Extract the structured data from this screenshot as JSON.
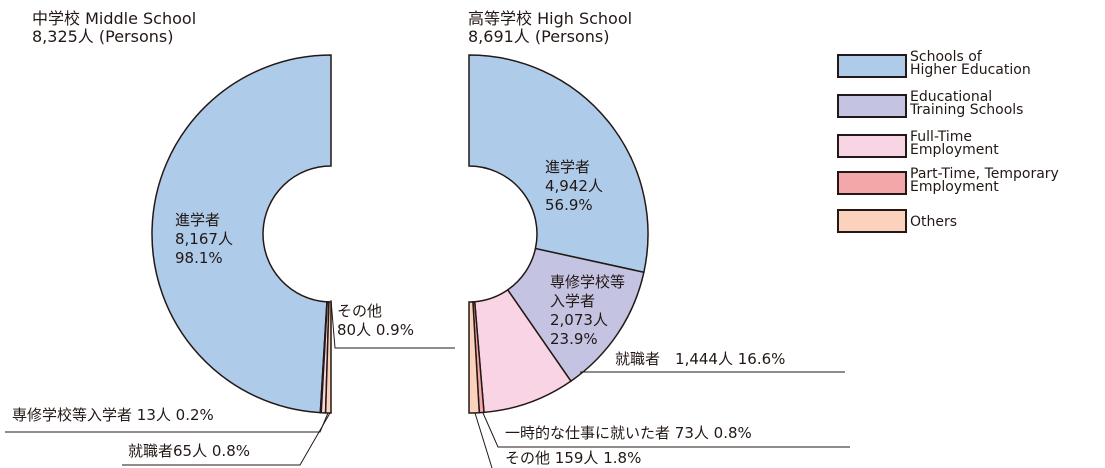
{
  "chart_data": [
    {
      "type": "pie",
      "title": "中学校 Middle School",
      "subtitle": "8,325人 (Persons)",
      "categories": [
        "進学者",
        "専修学校等入学者",
        "就職者",
        "その他"
      ],
      "values": [
        8167,
        13,
        65,
        80
      ],
      "value_labels": [
        "8,167人",
        "13人",
        "65人",
        "80人"
      ],
      "percentages": [
        98.1,
        0.2,
        0.8,
        0.9
      ],
      "percentage_labels": [
        "98.1%",
        "0.2%",
        "0.8%",
        "0.9%"
      ],
      "colors": [
        "#aecbea",
        "#c5c3e2",
        "#f9d4e4",
        "#fbd3bd"
      ]
    },
    {
      "type": "pie",
      "title": "高等学校 High School",
      "subtitle": "8,691人 (Persons)",
      "categories": [
        "進学者",
        [
          "専修学校等",
          "入学者"
        ],
        "就職者",
        "一時的な仕事に就いた者",
        "その他"
      ],
      "values": [
        4942,
        2073,
        1444,
        73,
        159
      ],
      "value_labels": [
        "4,942人",
        "2,073人",
        "1,444人",
        "73人",
        "159人"
      ],
      "percentages": [
        56.9,
        23.9,
        16.6,
        0.8,
        1.8
      ],
      "percentage_labels": [
        "56.9%",
        "23.9%",
        "16.6%",
        "0.8%",
        "1.8%"
      ],
      "colors": [
        "#aecbea",
        "#c5c3e2",
        "#f9d4e4",
        "#f4a7a8",
        "#fbd3bd"
      ]
    }
  ],
  "legend": [
    {
      "name": [
        "Schools of",
        "Higher Education"
      ],
      "color": "#aecbea"
    },
    {
      "name": [
        "Educational",
        "Training Schools"
      ],
      "color": "#c5c3e2"
    },
    {
      "name": [
        "Full-Time",
        "Employment"
      ],
      "color": "#f9d4e4"
    },
    {
      "name": [
        "Part-Time, Temporary",
        "Employment"
      ],
      "color": "#f4a7a8"
    },
    {
      "name": [
        "Others"
      ],
      "color": "#fbd3bd"
    }
  ]
}
